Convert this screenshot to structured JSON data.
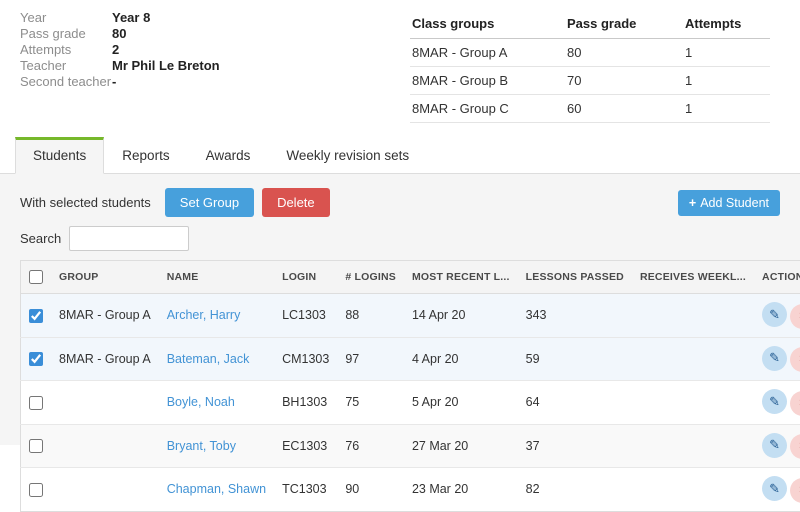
{
  "class_info": {
    "rows": [
      {
        "label": "Year",
        "value": "Year 8"
      },
      {
        "label": "Pass grade",
        "value": "80"
      },
      {
        "label": "Attempts",
        "value": "2"
      },
      {
        "label": "Teacher",
        "value": "Mr Phil Le Breton"
      },
      {
        "label": "Second teacher",
        "value": "-"
      }
    ]
  },
  "class_groups": {
    "headers": [
      "Class groups",
      "Pass grade",
      "Attempts"
    ],
    "rows": [
      {
        "group": "8MAR - Group A",
        "pass_grade": "80",
        "attempts": "1"
      },
      {
        "group": "8MAR - Group B",
        "pass_grade": "70",
        "attempts": "1"
      },
      {
        "group": "8MAR - Group C",
        "pass_grade": "60",
        "attempts": "1"
      }
    ]
  },
  "tabs": [
    {
      "label": "Students",
      "active": true
    },
    {
      "label": "Reports",
      "active": false
    },
    {
      "label": "Awards",
      "active": false
    },
    {
      "label": "Weekly revision sets",
      "active": false
    }
  ],
  "toolbar": {
    "with_selected_label": "With selected students",
    "set_group_label": "Set Group",
    "delete_label": "Delete",
    "add_student_label": "Add Student"
  },
  "search": {
    "label": "Search",
    "value": ""
  },
  "students_table": {
    "headers": [
      "GROUP",
      "NAME",
      "LOGIN",
      "# LOGINS",
      "MOST RECENT L...",
      "LESSONS PASSED",
      "RECEIVES WEEKL...",
      "ACTION"
    ],
    "rows": [
      {
        "checked": true,
        "group": "8MAR - Group A",
        "name": "Archer, Harry",
        "login": "LC1303",
        "logins": "88",
        "most_recent": "14 Apr 20",
        "lessons_passed": "343",
        "receives_weekly": ""
      },
      {
        "checked": true,
        "group": "8MAR - Group A",
        "name": "Bateman, Jack",
        "login": "CM1303",
        "logins": "97",
        "most_recent": "4 Apr 20",
        "lessons_passed": "59",
        "receives_weekly": ""
      },
      {
        "checked": false,
        "group": "",
        "name": "Boyle, Noah",
        "login": "BH1303",
        "logins": "75",
        "most_recent": "5 Apr 20",
        "lessons_passed": "64",
        "receives_weekly": ""
      },
      {
        "checked": false,
        "group": "",
        "name": "Bryant, Toby",
        "login": "EC1303",
        "logins": "76",
        "most_recent": "27 Mar 20",
        "lessons_passed": "37",
        "receives_weekly": ""
      },
      {
        "checked": false,
        "group": "",
        "name": "Chapman, Shawn",
        "login": "TC1303",
        "logins": "90",
        "most_recent": "23 Mar 20",
        "lessons_passed": "82",
        "receives_weekly": ""
      }
    ]
  },
  "icons": {
    "plus_glyph": "+",
    "edit_glyph": "✎",
    "delete_glyph": "✕"
  },
  "colors": {
    "accent_blue": "#47a0dc",
    "danger_red": "#d9534f",
    "tab_green": "#76b82a",
    "link_blue": "#4293d5",
    "selected_row": "#f2f7fc"
  }
}
